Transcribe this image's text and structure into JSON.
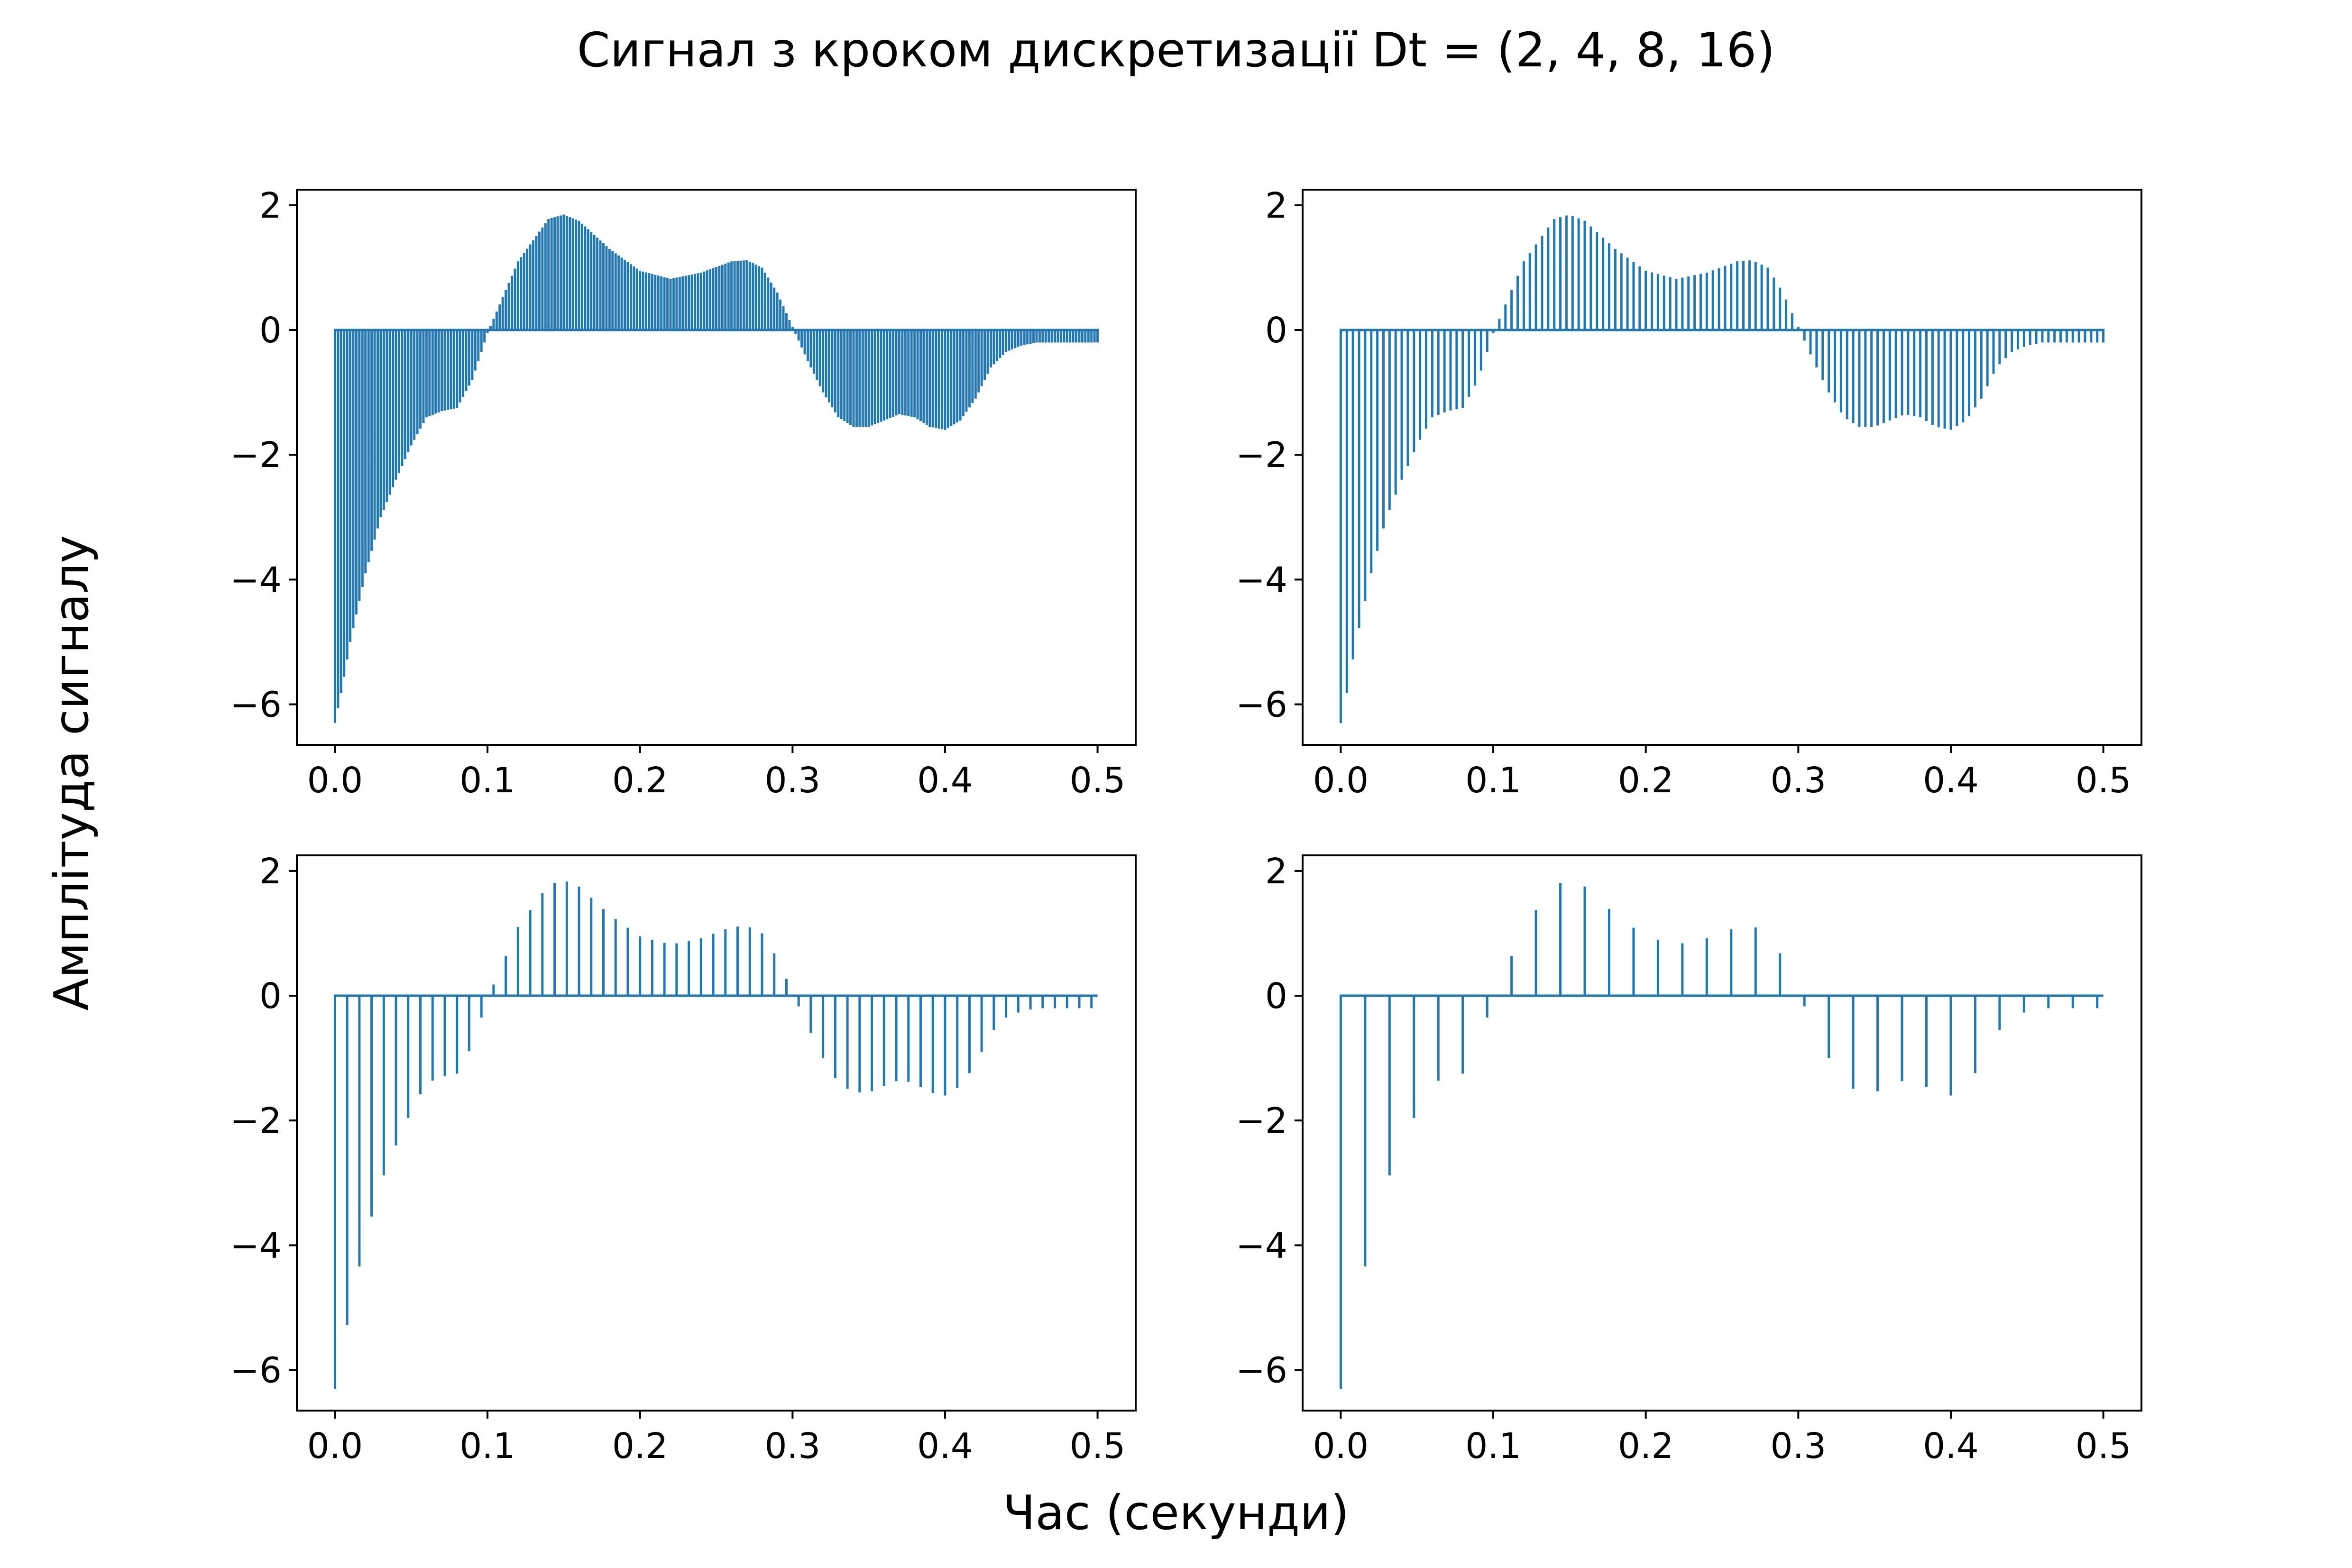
{
  "figure": {
    "title": "Сигнал з кроком дискретизації Dt = (2, 4, 8, 16)",
    "xlabel": "Час (секунди)",
    "ylabel": "Амплітуда сигналу",
    "line_color": "#1f77b4"
  },
  "chart_data": [
    {
      "type": "line",
      "subplot": "top-left",
      "dt": 2,
      "title": "",
      "xlabel": "",
      "ylabel": "",
      "xlim": [
        -0.025,
        0.525
      ],
      "ylim": [
        -6.65,
        2.25
      ],
      "xticks": [
        "0.0",
        "0.1",
        "0.2",
        "0.3",
        "0.4",
        "0.5"
      ],
      "yticks": [
        "−6",
        "−4",
        "−2",
        "0",
        "2"
      ],
      "grid": false,
      "legend": "none",
      "envelope_t": [
        0.0,
        0.005,
        0.01,
        0.02,
        0.03,
        0.04,
        0.05,
        0.06,
        0.07,
        0.08,
        0.09,
        0.1,
        0.12,
        0.14,
        0.15,
        0.16,
        0.18,
        0.2,
        0.22,
        0.24,
        0.26,
        0.27,
        0.28,
        0.29,
        0.3,
        0.31,
        0.32,
        0.33,
        0.34,
        0.35,
        0.36,
        0.37,
        0.38,
        0.39,
        0.4,
        0.41,
        0.42,
        0.43,
        0.44,
        0.45,
        0.46,
        0.48,
        0.5
      ],
      "envelope_y": [
        -6.3,
        -5.7,
        -5.0,
        -3.9,
        -3.0,
        -2.4,
        -1.85,
        -1.4,
        -1.3,
        -1.25,
        -0.8,
        -0.05,
        1.1,
        1.78,
        1.85,
        1.75,
        1.3,
        0.95,
        0.82,
        0.92,
        1.1,
        1.12,
        1.0,
        0.6,
        0.05,
        -0.5,
        -1.0,
        -1.4,
        -1.55,
        -1.55,
        -1.45,
        -1.35,
        -1.4,
        -1.55,
        -1.6,
        -1.45,
        -1.1,
        -0.6,
        -0.35,
        -0.25,
        -0.2,
        -0.2,
        -0.2
      ],
      "samples_per_second": 500
    },
    {
      "type": "line",
      "subplot": "top-right",
      "dt": 4,
      "title": "",
      "xlabel": "",
      "ylabel": "",
      "xlim": [
        -0.025,
        0.525
      ],
      "ylim": [
        -6.65,
        2.25
      ],
      "xticks": [
        "0.0",
        "0.1",
        "0.2",
        "0.3",
        "0.4",
        "0.5"
      ],
      "yticks": [
        "−6",
        "−4",
        "−2",
        "0",
        "2"
      ],
      "grid": false,
      "legend": "none",
      "envelope_t": [
        0.0,
        0.005,
        0.01,
        0.02,
        0.03,
        0.04,
        0.05,
        0.06,
        0.07,
        0.08,
        0.09,
        0.1,
        0.12,
        0.14,
        0.15,
        0.16,
        0.18,
        0.2,
        0.22,
        0.24,
        0.26,
        0.27,
        0.28,
        0.29,
        0.3,
        0.31,
        0.32,
        0.33,
        0.34,
        0.35,
        0.36,
        0.37,
        0.38,
        0.39,
        0.4,
        0.41,
        0.42,
        0.43,
        0.44,
        0.45,
        0.46,
        0.48,
        0.5
      ],
      "envelope_y": [
        -6.3,
        -5.7,
        -5.0,
        -3.9,
        -3.0,
        -2.4,
        -1.85,
        -1.4,
        -1.3,
        -1.25,
        -0.8,
        -0.05,
        1.1,
        1.78,
        1.85,
        1.75,
        1.3,
        0.95,
        0.82,
        0.92,
        1.1,
        1.12,
        1.0,
        0.6,
        0.05,
        -0.5,
        -1.0,
        -1.4,
        -1.55,
        -1.55,
        -1.45,
        -1.35,
        -1.4,
        -1.55,
        -1.6,
        -1.45,
        -1.1,
        -0.6,
        -0.35,
        -0.25,
        -0.2,
        -0.2,
        -0.2
      ],
      "samples_per_second": 250
    },
    {
      "type": "line",
      "subplot": "bottom-left",
      "dt": 8,
      "title": "",
      "xlabel": "",
      "ylabel": "",
      "xlim": [
        -0.025,
        0.525
      ],
      "ylim": [
        -6.65,
        2.25
      ],
      "xticks": [
        "0.0",
        "0.1",
        "0.2",
        "0.3",
        "0.4",
        "0.5"
      ],
      "yticks": [
        "−6",
        "−4",
        "−2",
        "0",
        "2"
      ],
      "grid": false,
      "legend": "none",
      "envelope_t": [
        0.0,
        0.005,
        0.01,
        0.02,
        0.03,
        0.04,
        0.05,
        0.06,
        0.07,
        0.08,
        0.09,
        0.1,
        0.12,
        0.14,
        0.15,
        0.16,
        0.18,
        0.2,
        0.22,
        0.24,
        0.26,
        0.27,
        0.28,
        0.29,
        0.3,
        0.31,
        0.32,
        0.33,
        0.34,
        0.35,
        0.36,
        0.37,
        0.38,
        0.39,
        0.4,
        0.41,
        0.42,
        0.43,
        0.44,
        0.45,
        0.46,
        0.48,
        0.5
      ],
      "envelope_y": [
        -6.3,
        -5.7,
        -5.0,
        -3.9,
        -3.0,
        -2.4,
        -1.85,
        -1.4,
        -1.3,
        -1.25,
        -0.8,
        -0.05,
        1.1,
        1.78,
        1.85,
        1.75,
        1.3,
        0.95,
        0.82,
        0.92,
        1.1,
        1.12,
        1.0,
        0.6,
        0.05,
        -0.5,
        -1.0,
        -1.4,
        -1.55,
        -1.55,
        -1.45,
        -1.35,
        -1.4,
        -1.55,
        -1.6,
        -1.45,
        -1.1,
        -0.6,
        -0.35,
        -0.25,
        -0.2,
        -0.2,
        -0.2
      ],
      "samples_per_second": 125
    },
    {
      "type": "line",
      "subplot": "bottom-right",
      "dt": 16,
      "title": "",
      "xlabel": "",
      "ylabel": "",
      "xlim": [
        -0.025,
        0.525
      ],
      "ylim": [
        -6.65,
        2.25
      ],
      "xticks": [
        "0.0",
        "0.1",
        "0.2",
        "0.3",
        "0.4",
        "0.5"
      ],
      "yticks": [
        "−6",
        "−4",
        "−2",
        "0",
        "2"
      ],
      "grid": false,
      "legend": "none",
      "envelope_t": [
        0.0,
        0.005,
        0.01,
        0.02,
        0.03,
        0.04,
        0.05,
        0.06,
        0.07,
        0.08,
        0.09,
        0.1,
        0.12,
        0.14,
        0.15,
        0.16,
        0.18,
        0.2,
        0.22,
        0.24,
        0.26,
        0.27,
        0.28,
        0.29,
        0.3,
        0.31,
        0.32,
        0.33,
        0.34,
        0.35,
        0.36,
        0.37,
        0.38,
        0.39,
        0.4,
        0.41,
        0.42,
        0.43,
        0.44,
        0.45,
        0.46,
        0.48,
        0.5
      ],
      "envelope_y": [
        -6.3,
        -5.7,
        -5.0,
        -3.9,
        -3.0,
        -2.4,
        -1.85,
        -1.4,
        -1.3,
        -1.25,
        -0.8,
        -0.05,
        1.1,
        1.78,
        1.85,
        1.75,
        1.3,
        0.95,
        0.82,
        0.92,
        1.1,
        1.12,
        1.0,
        0.6,
        0.05,
        -0.5,
        -1.0,
        -1.4,
        -1.55,
        -1.55,
        -1.45,
        -1.35,
        -1.4,
        -1.55,
        -1.6,
        -1.45,
        -1.1,
        -0.6,
        -0.35,
        -0.25,
        -0.2,
        -0.2,
        -0.2
      ],
      "samples_per_second": 62.5
    }
  ]
}
